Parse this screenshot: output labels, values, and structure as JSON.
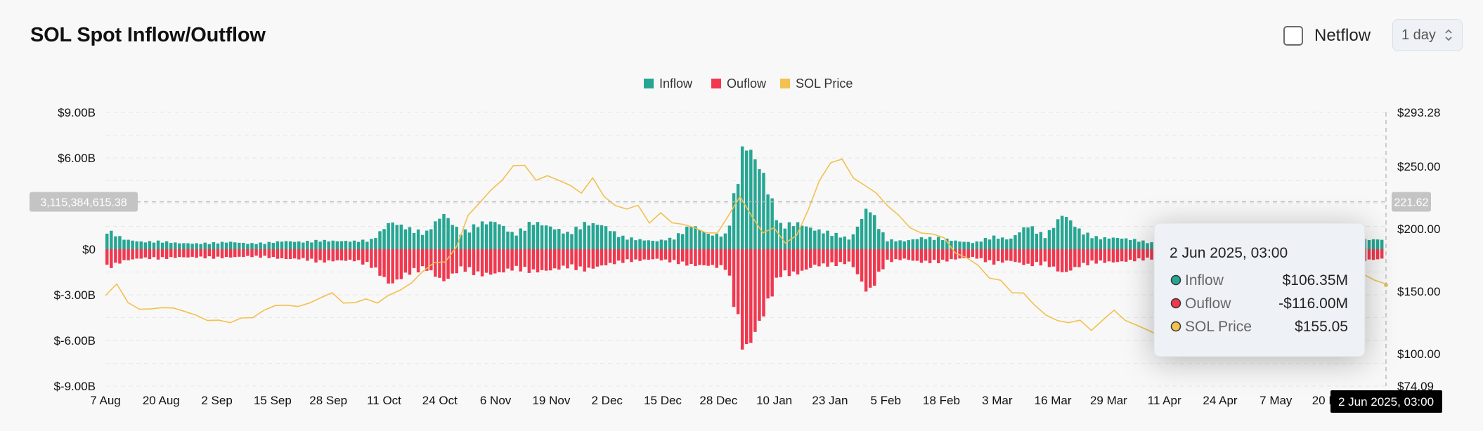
{
  "header": {
    "title": "SOL Spot Inflow/Outflow",
    "netflow_label": "Netflow",
    "netflow_checked": false,
    "period_value": "1 day"
  },
  "colors": {
    "inflow": "#26a693",
    "outflow": "#f0384f",
    "price": "#f2c14e",
    "grid": "#e6e6e6",
    "tooltip_bg": "#eef1f5"
  },
  "chart_data": {
    "type": "bar",
    "legend": [
      "Inflow",
      "Ouflow",
      "SOL Price"
    ],
    "legend_position": "top-center",
    "grid": true,
    "y_left": {
      "ticks": [
        9000000000,
        6000000000,
        0,
        -3000000000,
        -6000000000,
        -9000000000
      ],
      "tick_labels": [
        "$9.00B",
        "$6.00B",
        "$0",
        "$-3.00B",
        "$-6.00B",
        "$-9.00B"
      ],
      "range": [
        -9000000000,
        9000000000
      ]
    },
    "y_right": {
      "tick_values": [
        293.28,
        250,
        200,
        150,
        100,
        74.09
      ],
      "tick_labels": [
        "$293.28",
        "$250.00",
        "$200.00",
        "$150.00",
        "$100.00",
        "$74.09"
      ],
      "range": [
        74.09,
        293.28
      ]
    },
    "x_tick_labels": [
      "7 Aug",
      "20 Aug",
      "2 Sep",
      "15 Sep",
      "28 Sep",
      "11 Oct",
      "24 Oct",
      "6 Nov",
      "19 Nov",
      "2 Dec",
      "15 Dec",
      "28 Dec",
      "10 Jan",
      "23 Jan",
      "5 Feb",
      "18 Feb",
      "3 Mar",
      "16 Mar",
      "29 Mar",
      "11 Apr",
      "24 Apr",
      "7 May",
      "20 May"
    ],
    "x_range": [
      "2024-08-07",
      "2025-06-02"
    ],
    "inflow_samples_b": [
      1.2,
      0.6,
      0.45,
      0.5,
      0.38,
      0.35,
      0.4,
      0.45,
      0.35,
      0.4,
      0.5,
      0.45,
      0.55,
      0.5,
      0.5,
      0.6,
      1.7,
      1.3,
      1.0,
      2.2,
      1.0,
      1.6,
      1.7,
      0.9,
      1.7,
      1.4,
      1.0,
      1.6,
      1.5,
      0.8,
      0.6,
      0.5,
      0.7,
      1.5,
      0.9,
      0.9,
      6.7,
      4.8,
      1.5,
      1.6,
      1.2,
      1.0,
      0.6,
      2.7,
      0.6,
      0.5,
      0.7,
      0.7,
      0.5,
      0.4,
      0.8,
      0.6,
      1.5,
      0.8,
      2.2,
      1.1,
      0.7,
      0.7,
      0.6,
      0.4,
      0.7,
      0.6,
      0.7,
      0.5,
      0.8,
      0.5,
      0.7,
      0.5,
      0.6,
      0.6,
      0.8,
      0.6,
      0.6
    ],
    "outflow_samples_b": [
      -1.2,
      -0.7,
      -0.55,
      -0.6,
      -0.5,
      -0.5,
      -0.55,
      -0.5,
      -0.45,
      -0.5,
      -0.6,
      -0.6,
      -0.8,
      -0.7,
      -0.7,
      -1.1,
      -2.2,
      -1.5,
      -1.2,
      -2.0,
      -1.2,
      -1.6,
      -1.5,
      -1.2,
      -1.4,
      -1.3,
      -1.1,
      -1.3,
      -1.0,
      -0.8,
      -0.7,
      -0.6,
      -0.8,
      -1.0,
      -1.0,
      -1.2,
      -6.5,
      -4.2,
      -1.6,
      -1.5,
      -1.0,
      -1.0,
      -0.8,
      -2.8,
      -0.8,
      -0.6,
      -0.8,
      -0.8,
      -0.6,
      -0.5,
      -0.9,
      -0.7,
      -1.0,
      -0.9,
      -1.5,
      -1.0,
      -0.8,
      -0.8,
      -0.7,
      -0.6,
      -0.8,
      -0.6,
      -0.7,
      -0.6,
      -0.8,
      -0.6,
      -0.8,
      -0.6,
      -0.7,
      -0.7,
      -0.9,
      -0.7,
      -0.6
    ],
    "price_samples": [
      148,
      155,
      140,
      137,
      135,
      136,
      138,
      133,
      130,
      128,
      126,
      124,
      130,
      128,
      134,
      140,
      138,
      137,
      142,
      144,
      148,
      142,
      140,
      143,
      142,
      146,
      150,
      158,
      165,
      172,
      175,
      185,
      210,
      222,
      230,
      238,
      252,
      250,
      238,
      244,
      238,
      234,
      230,
      240,
      225,
      220,
      215,
      218,
      206,
      212,
      204,
      205,
      200,
      196,
      198,
      210,
      225,
      212,
      196,
      200,
      190,
      194,
      214,
      240,
      252,
      255,
      242,
      234,
      228,
      220,
      210,
      200,
      198,
      195,
      192,
      182,
      176,
      170,
      162,
      158,
      148,
      150,
      138,
      130,
      128,
      124,
      126,
      120,
      126,
      134,
      128,
      122,
      118,
      116,
      130,
      136,
      140,
      128,
      120,
      114,
      112,
      108,
      118,
      130,
      140,
      146,
      150,
      156,
      155,
      160,
      168,
      165,
      158,
      155
    ],
    "crosshair": {
      "left_value": 3115384615.38,
      "left_label": "3,115,384,615.38",
      "right_label": "221.62",
      "x_label": "2 Jun 2025, 03:00"
    },
    "tooltip": {
      "title": "2 Jun 2025, 03:00",
      "rows": [
        {
          "name": "Inflow",
          "value": "$106.35M"
        },
        {
          "name": "Ouflow",
          "value": "-$116.00M"
        },
        {
          "name": "SOL Price",
          "value": "$155.05"
        }
      ]
    }
  }
}
